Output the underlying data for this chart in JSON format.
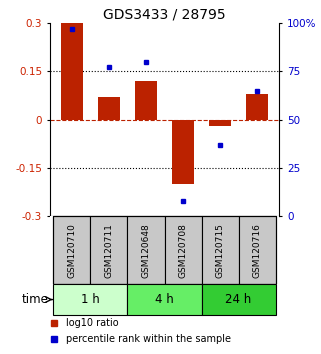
{
  "title": "GDS3433 / 28795",
  "samples": [
    "GSM120710",
    "GSM120711",
    "GSM120648",
    "GSM120708",
    "GSM120715",
    "GSM120716"
  ],
  "log10_ratio": [
    0.3,
    0.07,
    0.12,
    -0.2,
    -0.02,
    0.08
  ],
  "percentile_rank": [
    97,
    77,
    80,
    8,
    37,
    65
  ],
  "ylim_left": [
    -0.3,
    0.3
  ],
  "ylim_right": [
    0,
    100
  ],
  "yticks_left": [
    -0.3,
    -0.15,
    0,
    0.15,
    0.3
  ],
  "yticks_right": [
    0,
    25,
    50,
    75,
    100
  ],
  "bar_color": "#bb2200",
  "dot_color": "#0000cc",
  "groups": [
    {
      "label": "1 h",
      "indices": [
        0,
        1
      ],
      "color": "#ccffcc"
    },
    {
      "label": "4 h",
      "indices": [
        2,
        3
      ],
      "color": "#66ee66"
    },
    {
      "label": "24 h",
      "indices": [
        4,
        5
      ],
      "color": "#33cc33"
    }
  ],
  "time_label": "time",
  "legend_items": [
    {
      "label": "log10 ratio",
      "color": "#bb2200"
    },
    {
      "label": "percentile rank within the sample",
      "color": "#0000cc"
    }
  ],
  "tick_label_color_left": "#cc2200",
  "tick_label_color_right": "#0000cc",
  "title_fontsize": 10,
  "axis_fontsize": 7.5,
  "sample_label_fontsize": 6.5,
  "group_label_fontsize": 8.5,
  "legend_fontsize": 7
}
